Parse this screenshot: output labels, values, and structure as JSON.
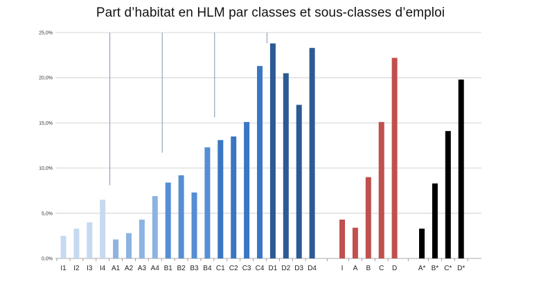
{
  "chart_data": {
    "type": "bar",
    "title": "Part d’habitat en HLM par classes et sous-classes d’emploi",
    "xlabel": "",
    "ylabel": "",
    "ylim": [
      0,
      25
    ],
    "yticks": [
      "0,0%",
      "5,0%",
      "10,0%",
      "15,0%",
      "20,0%",
      "25,0%"
    ],
    "grid": true,
    "legend": "none",
    "categories": [
      "I1",
      "I2",
      "I3",
      "I4",
      "A1",
      "A2",
      "A3",
      "A4",
      "B1",
      "B2",
      "B3",
      "B4",
      "C1",
      "C2",
      "C3",
      "C4",
      "D1",
      "D2",
      "D3",
      "D4",
      "I",
      "A",
      "B",
      "C",
      "D",
      "A*",
      "B*",
      "C*",
      "D*"
    ],
    "values": [
      2.5,
      3.3,
      4.0,
      6.5,
      2.1,
      2.8,
      4.3,
      6.9,
      8.4,
      9.2,
      7.3,
      12.3,
      13.1,
      13.5,
      15.1,
      21.3,
      23.8,
      20.5,
      17.0,
      23.3,
      4.3,
      3.4,
      9.0,
      15.1,
      22.2,
      3.3,
      8.3,
      14.1,
      19.8
    ],
    "colors": [
      "#c6d9f0",
      "#c6d9f0",
      "#c6d9f0",
      "#c6d9f0",
      "#8db3e2",
      "#8db3e2",
      "#8db3e2",
      "#8db3e2",
      "#558ed5",
      "#558ed5",
      "#558ed5",
      "#558ed5",
      "#3a76c4",
      "#3a76c4",
      "#3a76c4",
      "#3a76c4",
      "#2c5a94",
      "#2c5a94",
      "#2c5a94",
      "#2c5a94",
      "#c0504d",
      "#c0504d",
      "#c0504d",
      "#c0504d",
      "#c0504d",
      "#000000",
      "#000000",
      "#000000",
      "#000000"
    ],
    "separators_from": [
      25.0,
      25.0,
      25.0,
      25.0
    ],
    "separators_to": [
      8.1,
      11.7,
      15.6,
      23.8
    ]
  }
}
